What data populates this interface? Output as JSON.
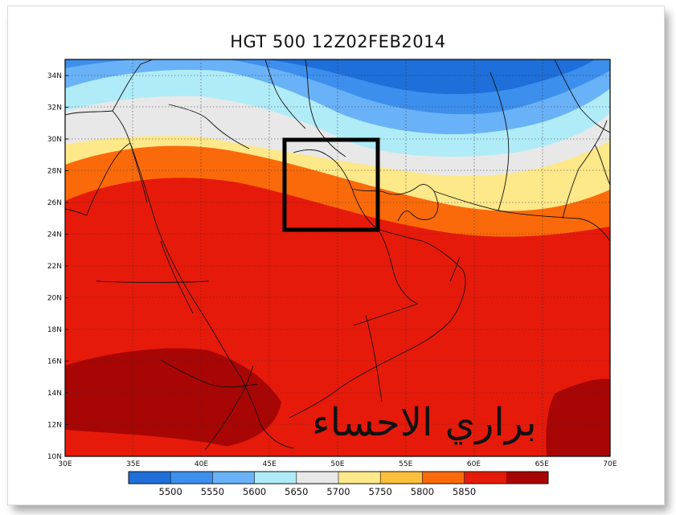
{
  "title": "HGT 500 12Z02FEB2014",
  "watermark": "براري الاحساء",
  "lat_ticks": [
    "34N",
    "32N",
    "30N",
    "28N",
    "26N",
    "24N",
    "22N",
    "20N",
    "18N",
    "16N",
    "14N",
    "12N",
    "10N"
  ],
  "lon_ticks": [
    "30E",
    "35E",
    "40E",
    "45E",
    "50E",
    "55E",
    "60E",
    "65E",
    "70E"
  ],
  "colorbar": {
    "labels": [
      "5500",
      "5550",
      "5600",
      "5650",
      "5700",
      "5750",
      "5800",
      "5850"
    ],
    "colors": [
      "#1e6fd9",
      "#3d8fee",
      "#6ab2f7",
      "#b0ecf8",
      "#e8e8e8",
      "#fde88a",
      "#fbbf3c",
      "#fb6a0a",
      "#e61a0a",
      "#a80505"
    ]
  },
  "highlight_box": {
    "label": ""
  }
}
